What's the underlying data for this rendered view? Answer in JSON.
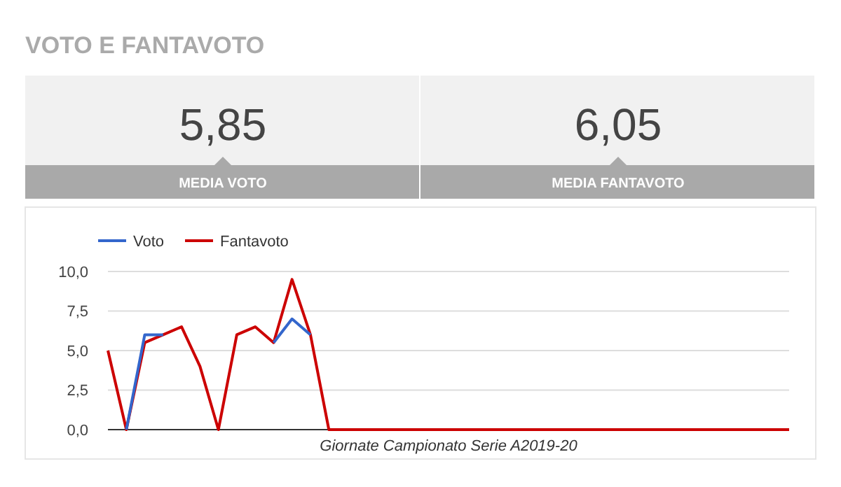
{
  "chart_data": [
    {
      "type": "other",
      "title": "VOTO E FANTAVOTO",
      "annotations": [
        "5,85",
        "MEDIA VOTO",
        "6,05",
        "MEDIA FANTAVOTO"
      ]
    },
    {
      "type": "line",
      "xlabel": "Giornate Campionato Serie A2019-20",
      "categories": [
        null,
        null,
        null,
        null,
        null,
        null,
        null,
        null,
        null,
        null,
        null,
        null,
        null,
        null,
        null,
        null,
        null,
        null,
        null,
        null,
        null,
        null,
        null,
        null,
        null,
        null,
        null,
        null,
        null,
        null,
        null,
        null,
        null,
        null,
        null,
        null,
        null,
        null
      ],
      "series": [
        {
          "name": "Voto",
          "color": "#3366cc",
          "values": [
            null,
            0,
            6,
            6,
            null,
            null,
            null,
            null,
            null,
            5.5,
            7,
            6,
            null,
            null,
            null,
            null,
            null,
            null,
            null,
            null,
            null,
            null,
            null,
            null,
            null,
            null,
            null,
            null,
            null,
            null,
            null,
            null,
            null,
            null,
            null,
            null,
            null,
            null
          ]
        },
        {
          "name": "Fantavoto",
          "color": "#cc0000",
          "values": [
            5,
            0,
            5.5,
            6,
            6.5,
            4,
            0,
            6,
            6.5,
            5.5,
            9.5,
            6,
            0,
            0,
            0,
            0,
            0,
            0,
            0,
            0,
            0,
            0,
            0,
            0,
            0,
            0,
            0,
            0,
            0,
            0,
            0,
            0,
            0,
            0,
            0,
            0,
            0,
            0
          ]
        }
      ],
      "ylim": [
        0,
        10
      ],
      "yticks": [
        {
          "value": 0,
          "label": "0,0"
        },
        {
          "value": 2.5,
          "label": "2,5"
        },
        {
          "value": 5,
          "label": "5,0"
        },
        {
          "value": 7.5,
          "label": "7,5"
        },
        {
          "value": 10,
          "label": "10,0"
        }
      ],
      "grid": "y",
      "legend": "top left",
      "marker": "none",
      "line_style": "solid"
    }
  ]
}
